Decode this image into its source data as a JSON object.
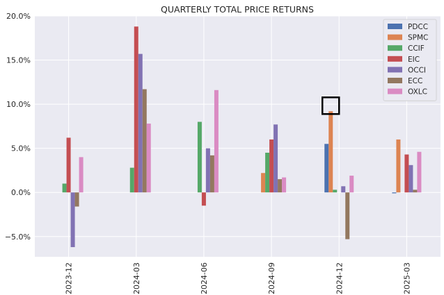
{
  "chart_data": {
    "type": "bar",
    "title": "QUARTERLY TOTAL PRICE  RETURNS",
    "xlabel": "",
    "ylabel": "",
    "ylim": [
      -7.3,
      20.0
    ],
    "yticks": [
      -5,
      0,
      5,
      10,
      15,
      20
    ],
    "ytick_labels": [
      "−5.0%",
      "0.0%",
      "5.0%",
      "10.0%",
      "15.0%",
      "20.0%"
    ],
    "categories": [
      "2023-12",
      "2024-03",
      "2024-06",
      "2024-09",
      "2024-12",
      "2025-03"
    ],
    "legend_position": "top-right",
    "grid": true,
    "series": [
      {
        "name": "PDCC",
        "color": "#4c72b0",
        "values": [
          null,
          null,
          null,
          null,
          5.5,
          -0.1
        ]
      },
      {
        "name": "SPMC",
        "color": "#dd8452",
        "values": [
          null,
          null,
          null,
          2.2,
          9.2,
          6.0
        ]
      },
      {
        "name": "CCIF",
        "color": "#55a868",
        "values": [
          1.0,
          2.8,
          8.0,
          4.5,
          0.3,
          null
        ]
      },
      {
        "name": "EIC",
        "color": "#c44e52",
        "values": [
          6.2,
          18.8,
          -1.5,
          6.0,
          null,
          4.3
        ]
      },
      {
        "name": "OCCI",
        "color": "#8172b3",
        "values": [
          -6.2,
          15.7,
          5.0,
          7.7,
          0.7,
          3.1
        ]
      },
      {
        "name": "ECC",
        "color": "#937860",
        "values": [
          -1.6,
          11.7,
          4.2,
          1.5,
          -5.3,
          0.3
        ]
      },
      {
        "name": "OXLC",
        "color": "#da8bc3",
        "values": [
          4.0,
          7.8,
          11.6,
          1.7,
          1.9,
          4.6
        ]
      }
    ],
    "annotations": [
      {
        "type": "highlight-box",
        "category": "2024-12",
        "series": "SPMC",
        "color": "#000000"
      }
    ]
  }
}
